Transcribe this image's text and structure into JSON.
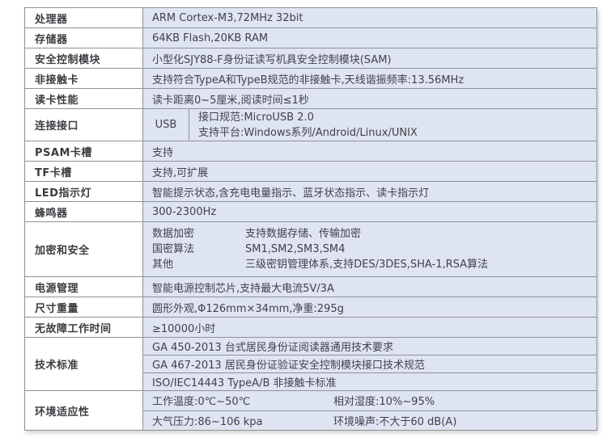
{
  "colors": {
    "page_bg": "#ffffff",
    "cell_bg": "#dfe4f3",
    "label_bg": "#ffffff",
    "border": "#8e9196",
    "text": "#404247",
    "label_text": "#3a3c40"
  },
  "table": {
    "rows": [
      {
        "label": "处理器",
        "value": "ARM Cortex-M3,72MHz 32bit"
      },
      {
        "label": "存储器",
        "value": "64KB Flash,20KB RAM"
      },
      {
        "label": "安全控制模块",
        "value": "小型化SJY88-F身份证读写机具安全控制模块(SAM)"
      },
      {
        "label": "非接触卡",
        "value": "支持符合TypeA和TypeB规范的非接触卡,天线谐振频率:13.56MHz"
      },
      {
        "label": "读卡性能",
        "value": "读卡距离0~5厘米,阅读时间≤1秒"
      },
      {
        "label": "连接接口",
        "type": "USB",
        "lines": [
          "接口规范:MicroUSB 2.0",
          "支持平台:Windows系列/Android/Linux/UNIX"
        ]
      },
      {
        "label": "PSAM卡槽",
        "value": "支持"
      },
      {
        "label": "TF卡槽",
        "value": "支持,可扩展"
      },
      {
        "label": "LED指示灯",
        "value": "智能提示状态,含充电电量指示、蓝牙状态指示、读卡指示灯"
      },
      {
        "label": "蜂鸣器",
        "value": "300-2300Hz"
      },
      {
        "label": "加密和安全",
        "items": [
          {
            "key": "数据加密",
            "val": "支持数据存储、传输加密"
          },
          {
            "key": "国密算法",
            "val": "SM1,SM2,SM3,SM4"
          },
          {
            "key": "其他",
            "val": "三级密钥管理体系,支持DES/3DES,SHA-1,RSA算法"
          }
        ]
      },
      {
        "label": "电源管理",
        "value": "智能电源控制芯片,支持最大电流5V/3A"
      },
      {
        "label": "尺寸重量",
        "value": "圆形外观,Φ126mm×34mm,净重:295g"
      },
      {
        "label": "无故障工作时间",
        "value": "≥10000小时"
      },
      {
        "label": "技术标准",
        "items": [
          "GA 450-2013 台式居民身份证阅读器通用技术要求",
          "GA 467-2013 居民身份证验证安全控制模块接口技术规范",
          "ISO/IEC14443 TypeA/B 非接触卡标准"
        ]
      },
      {
        "label": "环境适应性",
        "items": [
          {
            "left": "工作温度:0℃~50℃",
            "right": "相对湿度:10%~95%"
          },
          {
            "left": "大气压力:86~106 kpa",
            "right": "环境噪声:不大于60 dB(A)"
          }
        ]
      }
    ]
  }
}
